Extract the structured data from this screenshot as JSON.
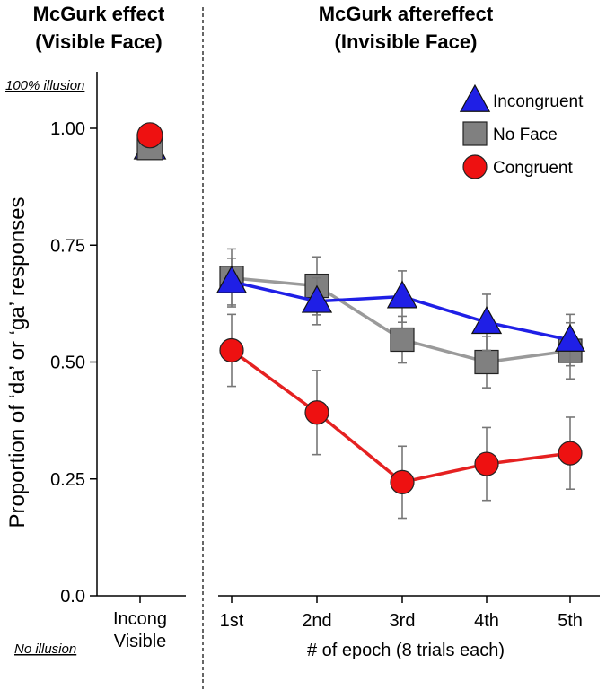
{
  "chart_data": {
    "type": "line",
    "panels": [
      {
        "name": "visible",
        "title_lines": [
          "McGurk effect",
          "(Visible Face)"
        ]
      },
      {
        "name": "invisible",
        "title_lines": [
          "McGurk aftereffect",
          "(Invisible Face)"
        ]
      }
    ],
    "ylabel": "Proportion of ‘da’ or ‘ga’ responses",
    "xlabel": "# of epoch (8 trials each)",
    "ylim": [
      0,
      1.15
    ],
    "yticks": [
      "0.0",
      "0.25",
      "0.50",
      "0.75",
      "1.00"
    ],
    "ytick_values": [
      0,
      0.25,
      0.5,
      0.75,
      1.0
    ],
    "annotations": {
      "top": "100% illusion",
      "bottom": "No illusion"
    },
    "visible_category_lines": [
      "Incong",
      "Visible"
    ],
    "categories": [
      "1st",
      "2nd",
      "3rd",
      "4th",
      "5th"
    ],
    "legend_position": "top-right",
    "visible_values": [
      {
        "series": "Incongruent",
        "value": 0.96
      },
      {
        "series": "No Face",
        "value": 0.96
      },
      {
        "series": "Congruent",
        "value": 0.985
      }
    ],
    "series": [
      {
        "name": "Incongruent",
        "marker": "triangle",
        "color": "#1f1fe6",
        "line_color": "#1f1fe6",
        "values": [
          0.672,
          0.63,
          0.64,
          0.585,
          0.547
        ],
        "errors": [
          0.05,
          0.05,
          0.055,
          0.06,
          0.055
        ]
      },
      {
        "name": "No Face",
        "marker": "square",
        "color": "#808080",
        "line_color": "#9a9a9a",
        "values": [
          0.68,
          0.663,
          0.548,
          0.5,
          0.524
        ],
        "errors": [
          0.062,
          0.062,
          0.05,
          0.055,
          0.06
        ]
      },
      {
        "name": "Congruent",
        "marker": "circle",
        "color": "#ee1111",
        "line_color": "#e52121",
        "values": [
          0.525,
          0.392,
          0.243,
          0.282,
          0.305
        ],
        "errors": [
          0.077,
          0.09,
          0.077,
          0.078,
          0.077
        ]
      }
    ]
  }
}
